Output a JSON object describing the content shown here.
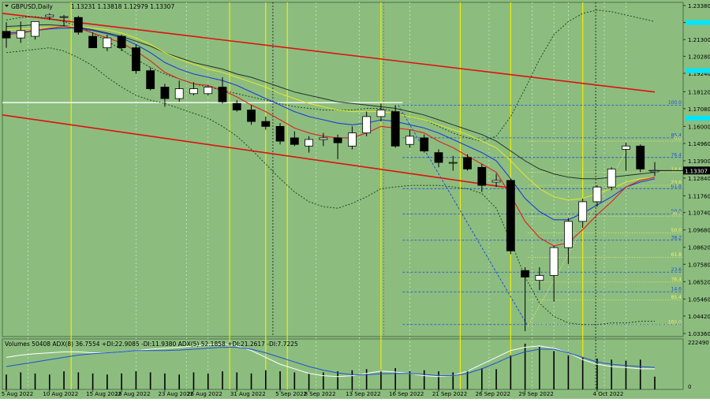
{
  "header": {
    "symbol": "GBPUSD,Daily",
    "ohlc": "1.13231 1.13818 1.12979 1.13307"
  },
  "volume_header": {
    "text": "Volumes 50408 ADX(8) 36.7554 +DI:22.9085 -DI:11.9380 ADX(5) 52.1858 +DI:21.2617 -DI:7.7225"
  },
  "colors": {
    "background": "#8cbd7f",
    "grid": "#79a86e",
    "bull_body": "#ffffff",
    "bear_body": "#000000",
    "channel": "#e01010",
    "vertical_yellow": "#f2ee00",
    "vertical_dotted": "#c8e6c0",
    "fib_blue": "#2050d0",
    "fib_yellow": "#f5f26a",
    "ma_red": "#e02020",
    "ma_blue": "#1c3cd8",
    "ma_yellow": "#e8e820",
    "ma_dark": "#223322",
    "bollinger": "#1a3a1a",
    "accent_cyan": "#00e5ff"
  },
  "chart_data": {
    "type": "candlestick",
    "price_range": [
      1.0336,
      1.2338
    ],
    "price_ticks": [
      "1.23380",
      "1.22340",
      "1.21300",
      "1.20280",
      "1.19240",
      "1.18120",
      "1.17080",
      "1.16000",
      "1.14960",
      "1.13900",
      "1.12840",
      "1.11760",
      "1.10740",
      "1.09680",
      "1.08620",
      "1.07580",
      "1.06520",
      "1.05460",
      "1.04420",
      "1.03360"
    ],
    "current_price_label": "1.13307",
    "x_ticks": [
      "5 Aug 2022",
      "10 Aug 2022",
      "15 Aug 2022",
      "18 Aug 2022",
      "23 Aug 2022",
      "26 Aug 2022",
      "31 Aug 2022",
      "5 Sep 2022",
      "8 Sep 2022",
      "13 Sep 2022",
      "16 Sep 2022",
      "21 Sep 2022",
      "26 Sep 2022",
      "29 Sep 2022",
      "4 Oct 2022"
    ],
    "candles": [
      {
        "o": 1.218,
        "h": 1.2236,
        "l": 1.208,
        "c": 1.214
      },
      {
        "o": 1.214,
        "h": 1.224,
        "l": 1.211,
        "c": 1.2185
      },
      {
        "o": 1.215,
        "h": 1.224,
        "l": 1.213,
        "c": 1.224
      },
      {
        "o": 1.227,
        "h": 1.229,
        "l": 1.225,
        "c": 1.228
      },
      {
        "o": 1.227,
        "h": 1.228,
        "l": 1.2215,
        "c": 1.227
      },
      {
        "o": 1.2265,
        "h": 1.2275,
        "l": 1.216,
        "c": 1.2175
      },
      {
        "o": 1.215,
        "h": 1.2175,
        "l": 1.208,
        "c": 1.208
      },
      {
        "o": 1.208,
        "h": 1.216,
        "l": 1.206,
        "c": 1.214
      },
      {
        "o": 1.215,
        "h": 1.216,
        "l": 1.206,
        "c": 1.208
      },
      {
        "o": 1.208,
        "h": 1.21,
        "l": 1.192,
        "c": 1.194
      },
      {
        "o": 1.194,
        "h": 1.196,
        "l": 1.182,
        "c": 1.183
      },
      {
        "o": 1.184,
        "h": 1.186,
        "l": 1.172,
        "c": 1.177
      },
      {
        "o": 1.177,
        "h": 1.188,
        "l": 1.175,
        "c": 1.183
      },
      {
        "o": 1.18,
        "h": 1.187,
        "l": 1.179,
        "c": 1.183
      },
      {
        "o": 1.18,
        "h": 1.185,
        "l": 1.179,
        "c": 1.184
      },
      {
        "o": 1.184,
        "h": 1.19,
        "l": 1.174,
        "c": 1.175
      },
      {
        "o": 1.174,
        "h": 1.176,
        "l": 1.169,
        "c": 1.17
      },
      {
        "o": 1.17,
        "h": 1.173,
        "l": 1.161,
        "c": 1.163
      },
      {
        "o": 1.163,
        "h": 1.166,
        "l": 1.158,
        "c": 1.16
      },
      {
        "o": 1.16,
        "h": 1.162,
        "l": 1.149,
        "c": 1.151
      },
      {
        "o": 1.153,
        "h": 1.157,
        "l": 1.148,
        "c": 1.149
      },
      {
        "o": 1.148,
        "h": 1.154,
        "l": 1.144,
        "c": 1.152
      },
      {
        "o": 1.152,
        "h": 1.156,
        "l": 1.148,
        "c": 1.153
      },
      {
        "o": 1.153,
        "h": 1.155,
        "l": 1.14,
        "c": 1.15
      },
      {
        "o": 1.148,
        "h": 1.16,
        "l": 1.146,
        "c": 1.156
      },
      {
        "o": 1.156,
        "h": 1.169,
        "l": 1.154,
        "c": 1.166
      },
      {
        "o": 1.166,
        "h": 1.174,
        "l": 1.163,
        "c": 1.17
      },
      {
        "o": 1.169,
        "h": 1.173,
        "l": 1.147,
        "c": 1.148
      },
      {
        "o": 1.149,
        "h": 1.158,
        "l": 1.147,
        "c": 1.154
      },
      {
        "o": 1.153,
        "h": 1.155,
        "l": 1.144,
        "c": 1.145
      },
      {
        "o": 1.144,
        "h": 1.146,
        "l": 1.135,
        "c": 1.138
      },
      {
        "o": 1.138,
        "h": 1.142,
        "l": 1.133,
        "c": 1.138
      },
      {
        "o": 1.141,
        "h": 1.143,
        "l": 1.133,
        "c": 1.134
      },
      {
        "o": 1.135,
        "h": 1.137,
        "l": 1.12,
        "c": 1.124
      },
      {
        "o": 1.126,
        "h": 1.131,
        "l": 1.123,
        "c": 1.127
      },
      {
        "o": 1.127,
        "h": 1.128,
        "l": 1.082,
        "c": 1.084
      },
      {
        "o": 1.072,
        "h": 1.074,
        "l": 1.035,
        "c": 1.068
      },
      {
        "o": 1.066,
        "h": 1.074,
        "l": 1.06,
        "c": 1.069
      },
      {
        "o": 1.069,
        "h": 1.087,
        "l": 1.053,
        "c": 1.086
      },
      {
        "o": 1.086,
        "h": 1.104,
        "l": 1.076,
        "c": 1.102
      },
      {
        "o": 1.102,
        "h": 1.116,
        "l": 1.098,
        "c": 1.114
      },
      {
        "o": 1.114,
        "h": 1.124,
        "l": 1.111,
        "c": 1.123
      },
      {
        "o": 1.123,
        "h": 1.135,
        "l": 1.121,
        "c": 1.134
      },
      {
        "o": 1.146,
        "h": 1.15,
        "l": 1.133,
        "c": 1.148
      },
      {
        "o": 1.148,
        "h": 1.149,
        "l": 1.132,
        "c": 1.134
      },
      {
        "o": 1.1323,
        "h": 1.1382,
        "l": 1.1298,
        "c": 1.1331
      }
    ],
    "channel_upper": [
      [
        1.229,
        1.181
      ]
    ],
    "channel_lower": [
      [
        1.167,
        1.122
      ]
    ],
    "bollinger_upper": [
      1.225,
      1.2265,
      1.227,
      1.226,
      1.224,
      1.221,
      1.217,
      1.212,
      1.207,
      1.201,
      1.196,
      1.192,
      1.189,
      1.186,
      1.184,
      1.182,
      1.18,
      1.178,
      1.176,
      1.174,
      1.172,
      1.171,
      1.17,
      1.17,
      1.17,
      1.171,
      1.171,
      1.169,
      1.166,
      1.164,
      1.16,
      1.156,
      1.153,
      1.151,
      1.154,
      1.166,
      1.183,
      1.201,
      1.216,
      1.224,
      1.229,
      1.231,
      1.23,
      1.228,
      1.226,
      1.224
    ],
    "bollinger_lower": [
      1.205,
      1.206,
      1.207,
      1.208,
      1.206,
      1.202,
      1.197,
      1.19,
      1.184,
      1.179,
      1.176,
      1.174,
      1.171,
      1.168,
      1.165,
      1.16,
      1.154,
      1.146,
      1.137,
      1.128,
      1.12,
      1.114,
      1.111,
      1.11,
      1.113,
      1.117,
      1.122,
      1.123,
      1.124,
      1.124,
      1.124,
      1.123,
      1.122,
      1.119,
      1.11,
      1.09,
      1.068,
      1.052,
      1.044,
      1.04,
      1.039,
      1.039,
      1.04,
      1.04,
      1.041,
      1.041
    ],
    "ma_red": [
      1.216,
      1.217,
      1.2185,
      1.22,
      1.221,
      1.22,
      1.217,
      1.214,
      1.211,
      1.206,
      1.2,
      1.193,
      1.189,
      1.186,
      1.185,
      1.182,
      1.178,
      1.173,
      1.169,
      1.164,
      1.159,
      1.156,
      1.154,
      1.153,
      1.153,
      1.156,
      1.16,
      1.159,
      1.158,
      1.156,
      1.151,
      1.147,
      1.142,
      1.137,
      1.132,
      1.118,
      1.102,
      1.092,
      1.087,
      1.089,
      1.097,
      1.106,
      1.114,
      1.123,
      1.127,
      1.129
    ],
    "ma_blue": [
      1.217,
      1.2175,
      1.2185,
      1.2195,
      1.22,
      1.22,
      1.2185,
      1.2165,
      1.214,
      1.21,
      1.205,
      1.199,
      1.195,
      1.192,
      1.19,
      1.188,
      1.185,
      1.181,
      1.177,
      1.173,
      1.169,
      1.166,
      1.164,
      1.162,
      1.161,
      1.162,
      1.164,
      1.163,
      1.161,
      1.159,
      1.156,
      1.152,
      1.148,
      1.144,
      1.139,
      1.128,
      1.116,
      1.108,
      1.103,
      1.103,
      1.107,
      1.112,
      1.117,
      1.123,
      1.126,
      1.128
    ],
    "ma_yellow": [
      1.219,
      1.2195,
      1.22,
      1.2205,
      1.221,
      1.221,
      1.22,
      1.219,
      1.217,
      1.214,
      1.21,
      1.205,
      1.201,
      1.198,
      1.195,
      1.193,
      1.19,
      1.187,
      1.184,
      1.18,
      1.177,
      1.174,
      1.172,
      1.17,
      1.169,
      1.169,
      1.169,
      1.168,
      1.166,
      1.164,
      1.161,
      1.158,
      1.155,
      1.151,
      1.147,
      1.139,
      1.13,
      1.122,
      1.117,
      1.115,
      1.116,
      1.119,
      1.122,
      1.126,
      1.128,
      1.129
    ],
    "ma_dark": [
      1.221,
      1.2215,
      1.222,
      1.222,
      1.2215,
      1.2205,
      1.219,
      1.217,
      1.215,
      1.212,
      1.209,
      1.205,
      1.202,
      1.199,
      1.197,
      1.195,
      1.192,
      1.19,
      1.187,
      1.184,
      1.181,
      1.179,
      1.177,
      1.175,
      1.174,
      1.173,
      1.172,
      1.171,
      1.169,
      1.167,
      1.164,
      1.161,
      1.158,
      1.155,
      1.151,
      1.145,
      1.139,
      1.134,
      1.131,
      1.129,
      1.128,
      1.128,
      1.129,
      1.13,
      1.131,
      1.132
    ],
    "white_level": 1.1745,
    "fib_blue_levels": [
      {
        "label": "100.0",
        "price": 1.173
      },
      {
        "label": "85.4",
        "price": 1.153
      },
      {
        "label": "76.4",
        "price": 1.141
      },
      {
        "label": "61.8",
        "price": 1.122
      },
      {
        "label": "50.0",
        "price": 1.1065
      },
      {
        "label": "38.2",
        "price": 1.0905
      },
      {
        "label": "23.6",
        "price": 1.071
      },
      {
        "label": "14.6",
        "price": 1.059
      },
      {
        "label": "0.0",
        "price": 1.039
      }
    ],
    "fib_yellow_levels": [
      {
        "label": "0.0",
        "price": 1.151
      },
      {
        "label": "14.6",
        "price": 1.132
      },
      {
        "label": "23.6",
        "price": 1.124
      },
      {
        "label": "38.2",
        "price": 1.105
      },
      {
        "label": "50.0",
        "price": 1.095
      },
      {
        "label": "61.8",
        "price": 1.08
      },
      {
        "label": "76.4",
        "price": 1.065
      },
      {
        "label": "85.4",
        "price": 1.054
      },
      {
        "label": "100.0",
        "price": 1.039
      }
    ],
    "cyan_markers": [
      1.2234,
      1.194,
      1.165
    ],
    "volume_axis_labels": [
      "222490",
      "0"
    ],
    "volumes": [
      70,
      80,
      75,
      70,
      85,
      80,
      75,
      70,
      75,
      85,
      80,
      75,
      70,
      80,
      75,
      85,
      80,
      75,
      90,
      85,
      80,
      75,
      80,
      85,
      90,
      95,
      90,
      100,
      85,
      90,
      85,
      80,
      90,
      100,
      95,
      160,
      215,
      200,
      180,
      160,
      150,
      145,
      140,
      135,
      140,
      60
    ],
    "adx_white": [
      0.7,
      0.75,
      0.78,
      0.8,
      0.82,
      0.82,
      0.8,
      0.8,
      0.82,
      0.85,
      0.88,
      0.9,
      0.92,
      0.95,
      0.97,
      1.0,
      0.95,
      0.85,
      0.7,
      0.55,
      0.45,
      0.35,
      0.3,
      0.28,
      0.3,
      0.35,
      0.4,
      0.38,
      0.35,
      0.3,
      0.28,
      0.3,
      0.4,
      0.55,
      0.7,
      0.85,
      0.92,
      0.95,
      0.9,
      0.8,
      0.65,
      0.55,
      0.5,
      0.48,
      0.45,
      0.45
    ],
    "adx_blue": [
      0.5,
      0.55,
      0.6,
      0.65,
      0.7,
      0.75,
      0.78,
      0.8,
      0.82,
      0.85,
      0.85,
      0.85,
      0.86,
      0.88,
      0.9,
      0.92,
      0.92,
      0.88,
      0.8,
      0.7,
      0.6,
      0.5,
      0.42,
      0.36,
      0.32,
      0.32,
      0.34,
      0.35,
      0.35,
      0.33,
      0.3,
      0.3,
      0.35,
      0.45,
      0.58,
      0.72,
      0.82,
      0.88,
      0.88,
      0.8,
      0.7,
      0.6,
      0.55,
      0.52,
      0.5,
      0.48
    ]
  }
}
